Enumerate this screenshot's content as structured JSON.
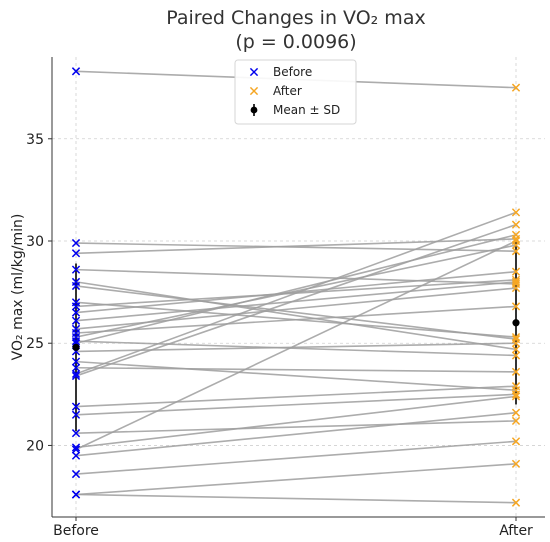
{
  "chart_data": {
    "type": "scatter",
    "subtype": "paired-slope",
    "title": "Paired Changes in VO₂ max",
    "subtitle": "(p = 0.0096)",
    "xlabel": "",
    "ylabel": "VO₂ max (ml/kg/min)",
    "categories": [
      "Before",
      "After"
    ],
    "ylim": [
      16.5,
      39
    ],
    "yticks": [
      20,
      25,
      30,
      35
    ],
    "grid": true,
    "legend_position": "top-center",
    "legend": [
      {
        "label": "Before",
        "marker": "x",
        "color": "#0000ee"
      },
      {
        "label": "After",
        "marker": "x",
        "color": "#f5a623"
      },
      {
        "label": "Mean ± SD",
        "marker": "errorbar",
        "color": "#000000"
      }
    ],
    "pairs": [
      {
        "before": 38.3,
        "after": 37.5
      },
      {
        "before": 29.9,
        "after": 29.5
      },
      {
        "before": 29.4,
        "after": 30.1
      },
      {
        "before": 28.6,
        "after": 27.9
      },
      {
        "before": 28.0,
        "after": 24.7
      },
      {
        "before": 27.8,
        "after": 25.2
      },
      {
        "before": 27.0,
        "after": 25.3
      },
      {
        "before": 26.8,
        "after": 28.1
      },
      {
        "before": 26.5,
        "after": 28.5
      },
      {
        "before": 26.1,
        "after": 28.0
      },
      {
        "before": 25.7,
        "after": 27.7
      },
      {
        "before": 25.5,
        "after": 26.8
      },
      {
        "before": 25.3,
        "after": 29.8
      },
      {
        "before": 25.1,
        "after": 24.4
      },
      {
        "before": 25.0,
        "after": 30.3
      },
      {
        "before": 24.6,
        "after": 25.0
      },
      {
        "before": 24.1,
        "after": 22.7
      },
      {
        "before": 23.8,
        "after": 23.6
      },
      {
        "before": 23.5,
        "after": 31.4
      },
      {
        "before": 23.4,
        "after": 30.8
      },
      {
        "before": 21.9,
        "after": 22.9
      },
      {
        "before": 21.5,
        "after": 22.5
      },
      {
        "before": 20.6,
        "after": 21.2
      },
      {
        "before": 19.9,
        "after": 22.4
      },
      {
        "before": 19.8,
        "after": 30.0
      },
      {
        "before": 19.5,
        "after": 21.6
      },
      {
        "before": 18.6,
        "after": 20.2
      },
      {
        "before": 17.6,
        "after": 19.1
      },
      {
        "before": 17.6,
        "after": 17.2
      }
    ],
    "mean_sd": [
      {
        "category": "Before",
        "mean": 24.8,
        "sd": 4.1
      },
      {
        "category": "After",
        "mean": 26.0,
        "sd": 4.0
      }
    ],
    "colors": {
      "before": "#0000ee",
      "after": "#f5a623",
      "pair_line": "#9e9e9e",
      "mean": "#000000",
      "grid": "#d0d0d0"
    }
  }
}
